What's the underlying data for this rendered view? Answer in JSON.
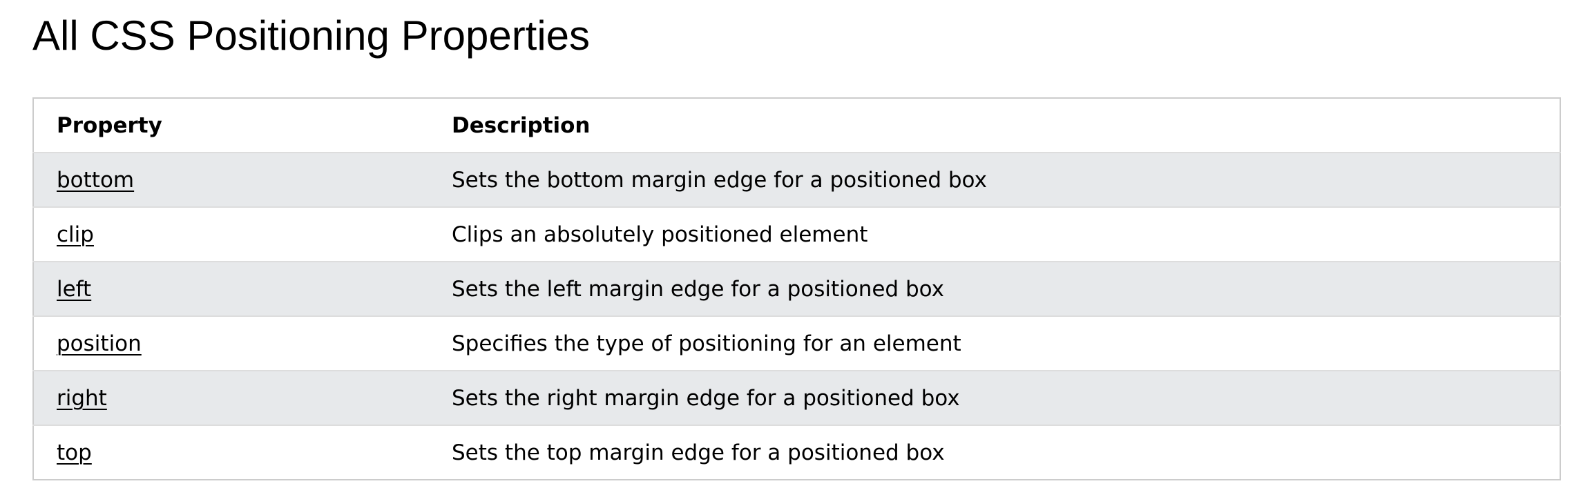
{
  "page": {
    "title": "All CSS Positioning Properties"
  },
  "table": {
    "headers": {
      "property": "Property",
      "description": "Description"
    },
    "rows": [
      {
        "property": "bottom",
        "description": "Sets the bottom margin edge for a positioned box"
      },
      {
        "property": "clip",
        "description": "Clips an absolutely positioned element"
      },
      {
        "property": "left",
        "description": "Sets the left margin edge for a positioned box"
      },
      {
        "property": "position",
        "description": "Specifies the type of positioning for an element"
      },
      {
        "property": "right",
        "description": "Sets the right margin edge for a positioned box"
      },
      {
        "property": "top",
        "description": "Sets the top margin edge for a positioned box"
      }
    ]
  },
  "colors": {
    "stripe": "#e7e9eb",
    "border": "#cccccc",
    "row_divider": "#dddddd"
  }
}
